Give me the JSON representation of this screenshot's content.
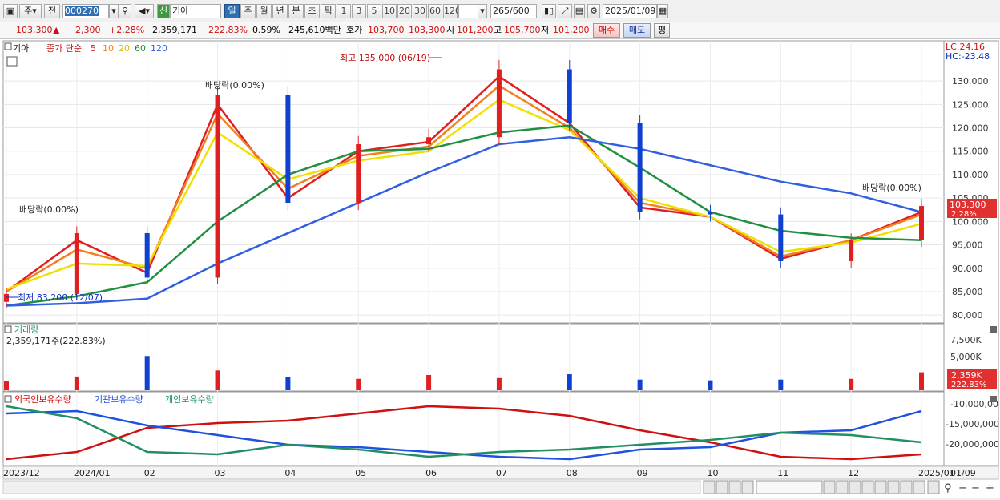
{
  "toolbar": {
    "type_label": "주",
    "prev_label": "전",
    "code": "000270",
    "name_badge": "신",
    "stock_name": "기아",
    "periods": [
      "일",
      "주",
      "월",
      "년",
      "분",
      "초",
      "틱"
    ],
    "active_period": "일",
    "intervals": [
      "1",
      "3",
      "5",
      "10",
      "20",
      "30",
      "60",
      "120"
    ],
    "count": "265",
    "count_max": "/600",
    "date": "2025/01/09"
  },
  "quote": {
    "price": "103,300",
    "arrow": "▲",
    "change": "2,300",
    "change_pct": "+2.28%",
    "volume": "2,359,171",
    "volume_ratio": "222.83%",
    "turnover": "0.59%",
    "amount": "245,610백만",
    "hoga_label": "호가",
    "hoga_ask": "103,700",
    "hoga_bid": "103,300",
    "open_label": "시",
    "open": "101,200",
    "high_label": "고",
    "high": "105,700",
    "low_label": "저",
    "low": "101,200",
    "buy_label": "매수",
    "sell_label": "매도",
    "eval_label": "평"
  },
  "price_panel": {
    "stock": "기아",
    "legend_prefix": "종가 단순",
    "ma": [
      {
        "period": "5",
        "color": "#e02020"
      },
      {
        "period": "10",
        "color": "#f08020"
      },
      {
        "period": "20",
        "color": "#f0e000"
      },
      {
        "period": "60",
        "color": "#209040"
      },
      {
        "period": "120",
        "color": "#3060e0"
      }
    ],
    "lc": "LC:24.16",
    "hc": "HC:-23.48",
    "high_note": "최고 135,000 (06/19)",
    "low_note": "최저 83,200 (12/07)",
    "dividend_note": "배당락(0.00%)",
    "last_price_label": "103,300",
    "last_pct_label": "2.28%",
    "yticks": [
      "130,000",
      "125,000",
      "120,000",
      "115,000",
      "110,000",
      "105,000",
      "100,000",
      "95,000",
      "90,000",
      "85,000",
      "80,000"
    ]
  },
  "volume_panel": {
    "title": "거래량",
    "value": "2,359,171주(222.83%)",
    "yticks": [
      "7,500K",
      "5,000K"
    ],
    "last_label": "2,359K",
    "last_pct": "222.83%"
  },
  "holdings_panel": {
    "series": [
      {
        "name": "외국인보유수량",
        "color": "#d01010"
      },
      {
        "name": "기관보유수량",
        "color": "#2050e0"
      },
      {
        "name": "개인보유수량",
        "color": "#209060"
      }
    ],
    "yticks": [
      "-10,000,00",
      "-15,000,000",
      "-20,000,000"
    ]
  },
  "xaxis": {
    "labels": [
      "2023/12",
      "2024/01",
      "02",
      "03",
      "04",
      "05",
      "06",
      "07",
      "08",
      "09",
      "10",
      "11",
      "12",
      "2025/01"
    ],
    "right_label": "01/09"
  },
  "chart_data": [
    {
      "type": "candlestick",
      "title": "기아",
      "y_unit": "KRW",
      "ylim": [
        79000,
        135500
      ],
      "x": [
        "2023/12",
        "2024/01",
        "02",
        "03",
        "04",
        "05",
        "06",
        "07",
        "08",
        "09",
        "10",
        "11",
        "12",
        "2025/01"
      ],
      "close_approx": [
        84500,
        97500,
        88000,
        127000,
        104000,
        116500,
        118000,
        132500,
        121000,
        102000,
        101500,
        91500,
        96000,
        103300
      ],
      "high": 135000,
      "low": 83200,
      "series": [
        {
          "name": "5",
          "values": [
            85000,
            96000,
            89000,
            125000,
            105000,
            115000,
            117000,
            131000,
            121000,
            103000,
            101000,
            92000,
            96000,
            102000
          ]
        },
        {
          "name": "10",
          "values": [
            85000,
            94000,
            90000,
            123000,
            107000,
            114000,
            116000,
            129000,
            120000,
            104000,
            101000,
            92500,
            96000,
            101500
          ]
        },
        {
          "name": "20",
          "values": [
            85500,
            91000,
            90500,
            119000,
            109000,
            113000,
            115000,
            126000,
            119500,
            105000,
            101000,
            93500,
            95500,
            99500
          ]
        },
        {
          "name": "60",
          "values": [
            82000,
            84000,
            87000,
            100000,
            110000,
            115000,
            115500,
            119000,
            120500,
            111500,
            102000,
            98000,
            96500,
            96000
          ]
        },
        {
          "name": "120",
          "values": [
            82000,
            82500,
            83500,
            91000,
            97500,
            104000,
            110500,
            116500,
            118000,
            115500,
            112000,
            108500,
            106000,
            102000
          ]
        }
      ]
    },
    {
      "type": "bar",
      "title": "거래량",
      "y_unit": "shares",
      "categories": [
        "2023/12",
        "2024/01",
        "02",
        "03",
        "04",
        "05",
        "06",
        "07",
        "08",
        "09",
        "10",
        "11",
        "12",
        "2025/01"
      ],
      "values": [
        1200000,
        1800000,
        4500000,
        2600000,
        1700000,
        1500000,
        2000000,
        1600000,
        2100000,
        1400000,
        1300000,
        1400000,
        1500000,
        2359171
      ]
    },
    {
      "type": "line",
      "title": "보유수량",
      "categories": [
        "2023/12",
        "2024/01",
        "02",
        "03",
        "04",
        "05",
        "06",
        "07",
        "08",
        "09",
        "10",
        "11",
        "12",
        "2025/01"
      ],
      "series": [
        {
          "name": "외국인보유수량",
          "values": [
            -21000000,
            -19500000,
            -14500000,
            -13500000,
            -13000000,
            -11500000,
            -10000000,
            -10500000,
            -12000000,
            -15000000,
            -17500000,
            -20500000,
            -21000000,
            -20000000
          ]
        },
        {
          "name": "기관보유수량",
          "values": [
            -11500000,
            -11000000,
            -14000000,
            -16000000,
            -18000000,
            -18500000,
            -19500000,
            -20500000,
            -21000000,
            -19000000,
            -18500000,
            -15500000,
            -15000000,
            -11000000
          ]
        },
        {
          "name": "개인보유수량",
          "values": [
            -10000000,
            -12500000,
            -19500000,
            -20000000,
            -18000000,
            -19000000,
            -20500000,
            -19500000,
            -19000000,
            -18000000,
            -17000000,
            -15500000,
            -16000000,
            -17500000
          ]
        }
      ]
    }
  ]
}
